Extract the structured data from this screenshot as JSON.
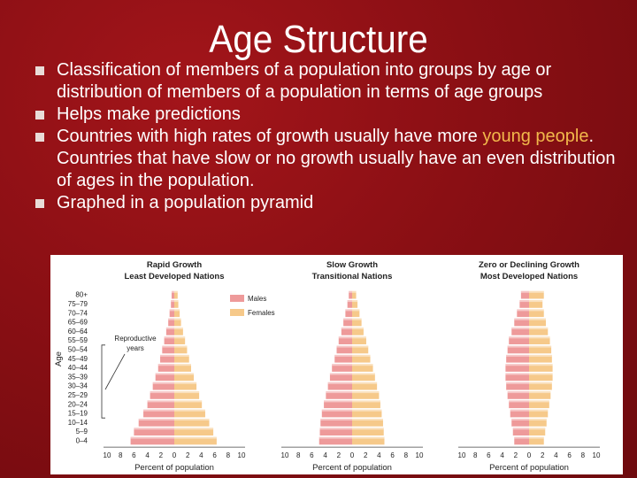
{
  "slide": {
    "title": "Age Structure",
    "bullets": [
      {
        "parts": [
          {
            "text": "Classification of members of a population into groups by age or distribution of members of a population in terms of age groups",
            "highlight": false
          }
        ]
      },
      {
        "parts": [
          {
            "text": "Helps make predictions",
            "highlight": false
          }
        ]
      },
      {
        "parts": [
          {
            "text": "Countries with high rates of growth usually have more ",
            "highlight": false
          },
          {
            "text": "young people",
            "highlight": true
          },
          {
            "text": ".  Countries that have slow or no growth usually have an even distribution of ages in the population.",
            "highlight": false
          }
        ]
      },
      {
        "parts": [
          {
            "text": "Graphed in a population pyramid",
            "highlight": false
          }
        ]
      }
    ],
    "colors": {
      "background": "#8a0f14",
      "highlight": "#f2b84b",
      "males": "#ee9a9a",
      "females": "#f6c98a"
    }
  },
  "chart_data": [
    {
      "type": "bar",
      "orientation": "horizontal-pyramid",
      "title": "Rapid Growth",
      "subtitle": "Least Developed Nations",
      "ylabel": "Age",
      "xlabel": "Percent of population",
      "x_ticks": [
        "10",
        "8",
        "6",
        "4",
        "2",
        "0",
        "2",
        "4",
        "6",
        "8",
        "10"
      ],
      "xlim": [
        -10,
        10
      ],
      "categories": [
        "80+",
        "75–79",
        "70–74",
        "65–69",
        "60–64",
        "55–59",
        "50–54",
        "45–49",
        "40–44",
        "35–39",
        "30–34",
        "25–29",
        "20–24",
        "15–19",
        "10–14",
        "5–9",
        "0–4"
      ],
      "legend": [
        "Males",
        "Females"
      ],
      "annotation": "Reproductive years",
      "series": [
        {
          "name": "Males",
          "values": [
            0.4,
            0.5,
            0.7,
            0.9,
            1.2,
            1.5,
            1.8,
            2.1,
            2.4,
            2.8,
            3.2,
            3.6,
            4.0,
            4.6,
            5.3,
            6.0,
            6.5
          ]
        },
        {
          "name": "Females",
          "values": [
            0.5,
            0.6,
            0.8,
            1.0,
            1.3,
            1.6,
            1.9,
            2.2,
            2.5,
            2.9,
            3.3,
            3.7,
            4.1,
            4.6,
            5.2,
            5.8,
            6.3
          ]
        }
      ]
    },
    {
      "type": "bar",
      "orientation": "horizontal-pyramid",
      "title": "Slow Growth",
      "subtitle": "Transitional Nations",
      "xlabel": "Percent of population",
      "x_ticks": [
        "10",
        "8",
        "6",
        "4",
        "2",
        "0",
        "2",
        "4",
        "6",
        "8",
        "10"
      ],
      "xlim": [
        -10,
        10
      ],
      "categories": [
        "80+",
        "75–79",
        "70–74",
        "65–69",
        "60–64",
        "55–59",
        "50–54",
        "45–49",
        "40–44",
        "35–39",
        "30–34",
        "25–29",
        "20–24",
        "15–19",
        "10–14",
        "5–9",
        "0–4"
      ],
      "series": [
        {
          "name": "Males",
          "values": [
            0.5,
            0.7,
            1.0,
            1.3,
            1.6,
            2.0,
            2.3,
            2.6,
            3.0,
            3.3,
            3.6,
            3.9,
            4.2,
            4.5,
            4.7,
            4.8,
            4.9
          ]
        },
        {
          "name": "Females",
          "values": [
            0.6,
            0.8,
            1.1,
            1.4,
            1.7,
            2.1,
            2.4,
            2.7,
            3.1,
            3.4,
            3.7,
            4.0,
            4.2,
            4.4,
            4.6,
            4.7,
            4.8
          ]
        }
      ]
    },
    {
      "type": "bar",
      "orientation": "horizontal-pyramid",
      "title": "Zero or Declining Growth",
      "subtitle": "Most Developed Nations",
      "xlabel": "Percent of population",
      "x_ticks": [
        "10",
        "8",
        "6",
        "4",
        "2",
        "0",
        "2",
        "4",
        "6",
        "8",
        "10"
      ],
      "xlim": [
        -10,
        10
      ],
      "categories": [
        "80+",
        "75–79",
        "70–74",
        "65–69",
        "60–64",
        "55–59",
        "50–54",
        "45–49",
        "40–44",
        "35–39",
        "30–34",
        "25–29",
        "20–24",
        "15–19",
        "10–14",
        "5–9",
        "0–4"
      ],
      "series": [
        {
          "name": "Males",
          "values": [
            1.2,
            1.4,
            1.8,
            2.2,
            2.6,
            3.0,
            3.2,
            3.4,
            3.5,
            3.5,
            3.4,
            3.2,
            3.0,
            2.8,
            2.6,
            2.4,
            2.2
          ]
        },
        {
          "name": "Females",
          "values": [
            2.2,
            2.0,
            2.2,
            2.5,
            2.8,
            3.1,
            3.3,
            3.4,
            3.5,
            3.5,
            3.4,
            3.2,
            3.0,
            2.8,
            2.6,
            2.4,
            2.2
          ]
        }
      ]
    }
  ]
}
